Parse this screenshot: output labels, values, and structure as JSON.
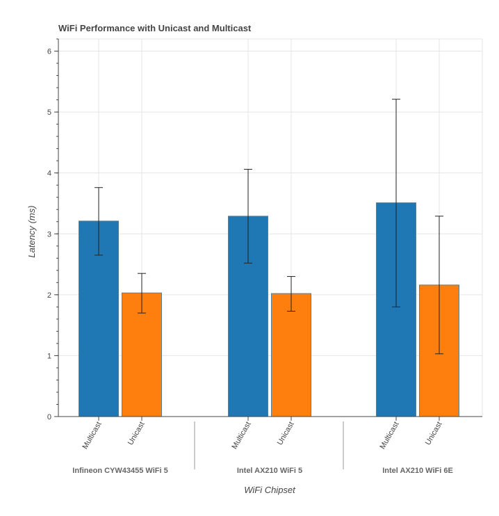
{
  "chart_data": {
    "type": "bar",
    "title": "WiFi Performance with Unicast and Multicast",
    "xlabel": "WiFi Chipset",
    "ylabel": "Latency (ms)",
    "ylim": [
      0,
      6.2
    ],
    "yticks": [
      0,
      1,
      2,
      3,
      4,
      5,
      6
    ],
    "grid": true,
    "groups": [
      {
        "name": "Infineon CYW43455 WiFi 5",
        "bars": [
          {
            "category": "Multicast",
            "value": 3.21,
            "error_low": 2.65,
            "error_high": 3.76,
            "color": "#1f77b4"
          },
          {
            "category": "Unicast",
            "value": 2.03,
            "error_low": 1.7,
            "error_high": 2.35,
            "color": "#ff7f0e"
          }
        ]
      },
      {
        "name": "Intel AX210 WiFi 5",
        "bars": [
          {
            "category": "Multicast",
            "value": 3.29,
            "error_low": 2.52,
            "error_high": 4.06,
            "color": "#1f77b4"
          },
          {
            "category": "Unicast",
            "value": 2.02,
            "error_low": 1.73,
            "error_high": 2.3,
            "color": "#ff7f0e"
          }
        ]
      },
      {
        "name": "Intel AX210 WiFi 6E",
        "bars": [
          {
            "category": "Multicast",
            "value": 3.51,
            "error_low": 1.8,
            "error_high": 5.21,
            "color": "#1f77b4"
          },
          {
            "category": "Unicast",
            "value": 2.16,
            "error_low": 1.03,
            "error_high": 3.29,
            "color": "#ff7f0e"
          }
        ]
      }
    ]
  }
}
